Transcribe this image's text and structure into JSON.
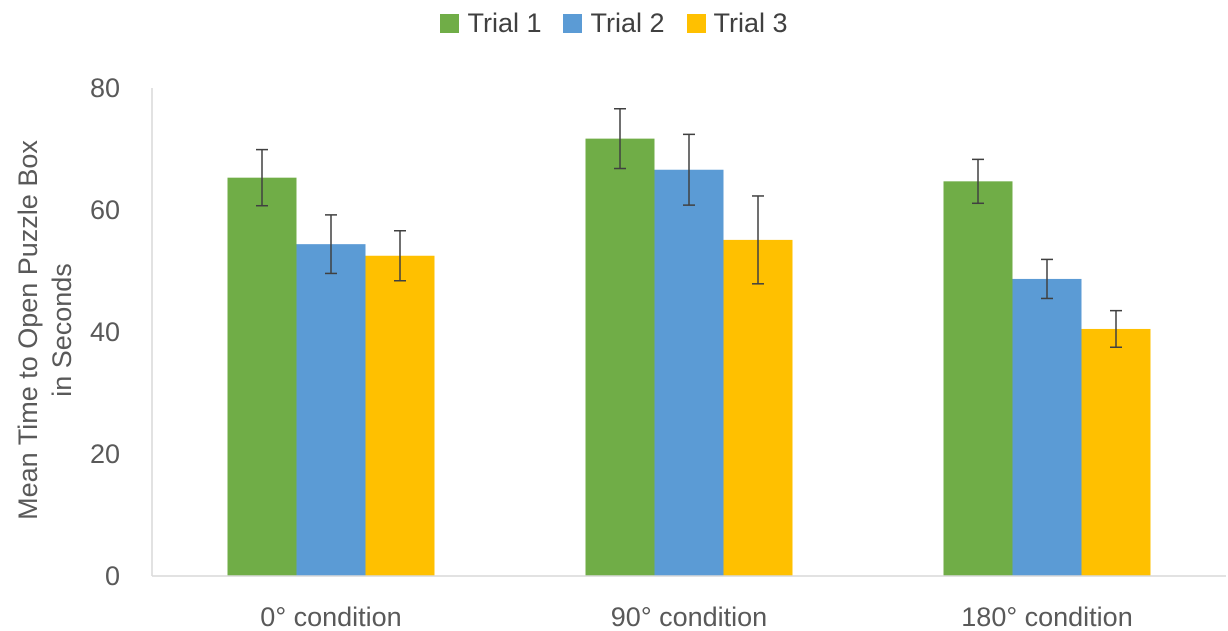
{
  "chart_data": {
    "type": "bar",
    "categories": [
      "0° condition",
      "90° condition",
      "180° condition"
    ],
    "series": [
      {
        "name": "Trial 1",
        "color": "#70AD47",
        "values": [
          65.3,
          71.7,
          64.7
        ],
        "errors": [
          4.6,
          4.9,
          3.6
        ]
      },
      {
        "name": "Trial 2",
        "color": "#5B9BD5",
        "values": [
          54.4,
          66.6,
          48.7
        ],
        "errors": [
          4.8,
          5.8,
          3.2
        ]
      },
      {
        "name": "Trial 3",
        "color": "#FFC000",
        "values": [
          52.5,
          55.1,
          40.5
        ],
        "errors": [
          4.1,
          7.2,
          3.0
        ]
      }
    ],
    "ylabel_line1": "Mean Time to Open Puzzle Box",
    "ylabel_line2": "in Seconds",
    "ylim": [
      0,
      80
    ],
    "yticks": [
      0,
      20,
      40,
      60,
      80
    ],
    "grid": false,
    "legend_position": "top"
  }
}
